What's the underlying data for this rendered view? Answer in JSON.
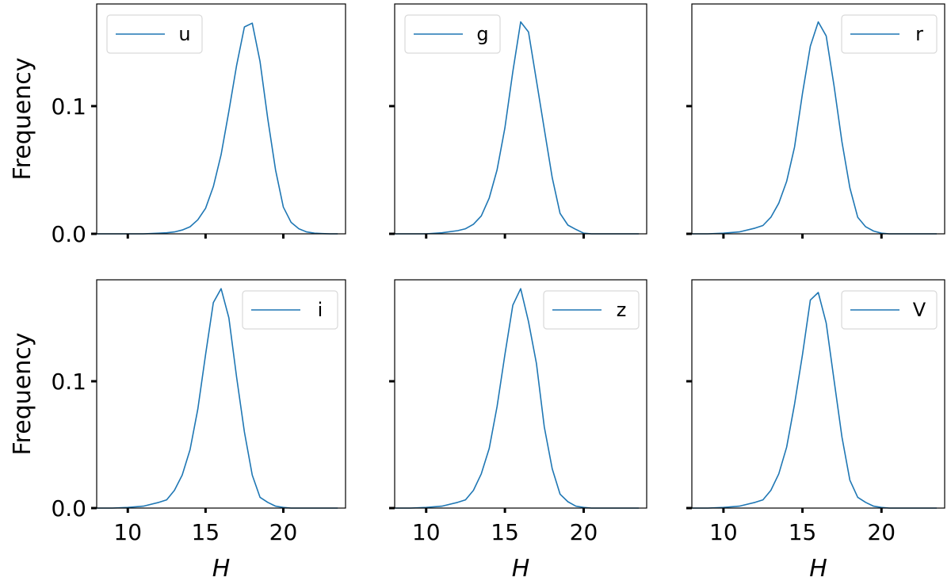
{
  "chart_data": {
    "type": "line",
    "layout": "2x3 grid",
    "sharex": true,
    "sharey": true,
    "xlabel": "H",
    "ylabel": "Frequency",
    "xlim": [
      8,
      24
    ],
    "ylim": [
      0,
      0.18
    ],
    "xticks": [
      10,
      15,
      20
    ],
    "yticks": [
      0.0,
      0.1
    ],
    "ytick_labels": [
      "0.0",
      "0.1"
    ],
    "grid": false,
    "line_color": "#1f77b4",
    "panels": [
      {
        "name": "u",
        "legend": "top-left",
        "x": [
          8,
          9,
          10,
          11,
          12,
          12.5,
          13,
          13.5,
          14,
          14.5,
          15,
          15.5,
          16,
          16.5,
          17,
          17.5,
          18,
          18.5,
          19,
          19.5,
          20,
          20.5,
          21,
          21.5,
          22,
          22.5,
          23,
          23.5
        ],
        "y": [
          0,
          0,
          0,
          0,
          0.0005,
          0.0008,
          0.0015,
          0.003,
          0.0055,
          0.011,
          0.02,
          0.037,
          0.062,
          0.096,
          0.132,
          0.162,
          0.165,
          0.135,
          0.09,
          0.05,
          0.021,
          0.009,
          0.004,
          0.0015,
          0.0005,
          0.0002,
          0,
          0
        ]
      },
      {
        "name": "g",
        "legend": "top-left",
        "x": [
          8,
          9,
          10,
          11,
          12,
          12.5,
          13,
          13.5,
          14,
          14.5,
          15,
          15.5,
          16,
          16.5,
          17,
          17.5,
          18,
          18.5,
          19,
          19.5,
          20,
          20.5,
          21,
          21.5,
          22,
          22.5,
          23,
          23.5
        ],
        "y": [
          0,
          0,
          0,
          0.0008,
          0.0025,
          0.004,
          0.0075,
          0.014,
          0.028,
          0.05,
          0.083,
          0.127,
          0.166,
          0.158,
          0.12,
          0.082,
          0.044,
          0.016,
          0.0068,
          0.0035,
          0.0005,
          0,
          0,
          0,
          0,
          0,
          0,
          0
        ]
      },
      {
        "name": "r",
        "legend": "top-right",
        "x": [
          8,
          9,
          10,
          11,
          12,
          12.5,
          13,
          13.5,
          14,
          14.5,
          15,
          15.5,
          16,
          16.5,
          17,
          17.5,
          18,
          18.5,
          19,
          19.5,
          20,
          20.5,
          21,
          21.5,
          22,
          22.5,
          23,
          23.5
        ],
        "y": [
          0,
          0,
          0.0005,
          0.0015,
          0.0045,
          0.0065,
          0.013,
          0.024,
          0.041,
          0.068,
          0.11,
          0.147,
          0.166,
          0.155,
          0.116,
          0.072,
          0.036,
          0.013,
          0.0055,
          0.0022,
          0.0005,
          0,
          0,
          0,
          0,
          0,
          0,
          0
        ]
      },
      {
        "name": "i",
        "legend": "top-right",
        "x": [
          8,
          9,
          10,
          11,
          12,
          12.5,
          13,
          13.5,
          14,
          14.5,
          15,
          15.5,
          16,
          16.5,
          17,
          17.5,
          18,
          18.5,
          19,
          19.5,
          20,
          20.5,
          21,
          21.5,
          22,
          22.5,
          23,
          23.5
        ],
        "y": [
          0,
          0,
          0.0005,
          0.0015,
          0.0045,
          0.0065,
          0.014,
          0.026,
          0.046,
          0.078,
          0.121,
          0.162,
          0.173,
          0.15,
          0.103,
          0.06,
          0.026,
          0.0085,
          0.0045,
          0.0015,
          0.0005,
          0,
          0,
          0,
          0,
          0,
          0,
          0
        ]
      },
      {
        "name": "z",
        "legend": "top-right",
        "x": [
          8,
          9,
          10,
          11,
          12,
          12.5,
          13,
          13.5,
          14,
          14.5,
          15,
          15.5,
          16,
          16.5,
          17,
          17.5,
          18,
          18.5,
          19,
          19.5,
          20,
          20.5,
          21,
          21.5,
          22,
          22.5,
          23,
          23.5
        ],
        "y": [
          0,
          0,
          0.0005,
          0.0015,
          0.0045,
          0.0065,
          0.014,
          0.027,
          0.047,
          0.08,
          0.121,
          0.16,
          0.173,
          0.147,
          0.114,
          0.064,
          0.031,
          0.011,
          0.005,
          0.0015,
          0.0005,
          0,
          0,
          0,
          0,
          0,
          0,
          0
        ]
      },
      {
        "name": "V",
        "legend": "top-right",
        "x": [
          8,
          9,
          10,
          11,
          12,
          12.5,
          13,
          13.5,
          14,
          14.5,
          15,
          15.5,
          16,
          16.5,
          17,
          17.5,
          18,
          18.5,
          19,
          19.5,
          20,
          20.5,
          21,
          21.5,
          22,
          22.5,
          23,
          23.5
        ],
        "y": [
          0,
          0,
          0.0005,
          0.0015,
          0.0045,
          0.0065,
          0.014,
          0.027,
          0.048,
          0.082,
          0.121,
          0.164,
          0.17,
          0.146,
          0.101,
          0.056,
          0.022,
          0.0085,
          0.0045,
          0.0015,
          0.0005,
          0,
          0,
          0,
          0,
          0,
          0,
          0
        ]
      }
    ]
  }
}
